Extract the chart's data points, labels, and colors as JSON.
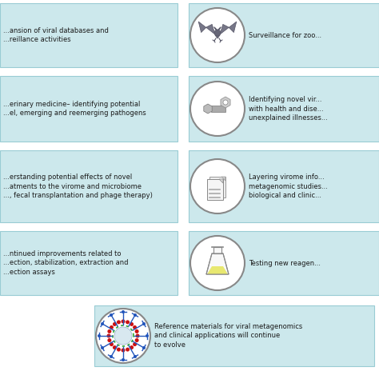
{
  "bg_color": "#ffffff",
  "box_color": "#cce8ec",
  "box_edge_color": "#99ccd4",
  "text_color": "#1a1a1a",
  "circle_edge_color": "#888888",
  "circle_fill_color": "#ffffff",
  "left_texts": [
    "...ansion of viral databases and\n...reillance activities",
    "...erinary medicine– identifying potential\n...el, emerging and reemerging pathogens",
    "...erstanding potential effects of novel\n...atments to the virome and microbiome\n..., fecal transplantation and phage therapy)",
    "...ntinued improvements related to\n...ection, stabilization, extraction and\n...ection assays"
  ],
  "right_texts": [
    "Surveillance for zoo...",
    "Identifying novel vir...\nwith health and dise...\nunexplained illnesses...",
    "Layering virome info...\nmetagenomic studies...\nbiological and clinic...",
    "Testing new reagen..."
  ],
  "bottom_text": "Reference materials for viral metagenomics\nand clinical applications will continue\nto evolve",
  "figsize": [
    4.74,
    4.74
  ],
  "dpi": 100
}
